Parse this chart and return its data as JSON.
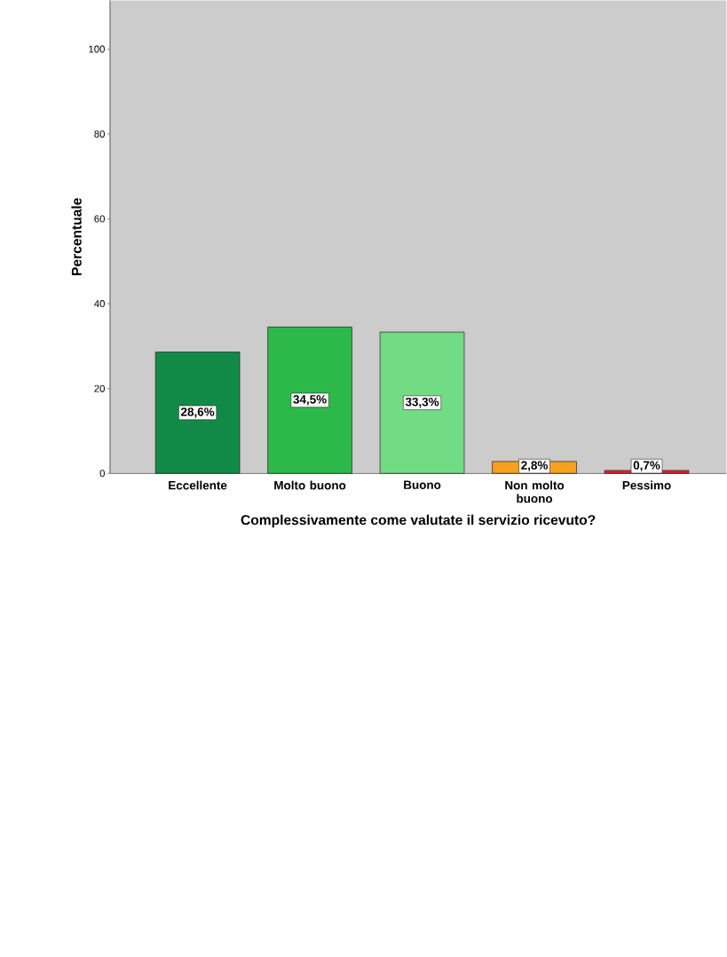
{
  "chart_data": {
    "type": "bar",
    "xlabel": "Complessivamente come valutate il servizio ricevuto?",
    "ylabel": "Percentuale",
    "categories": [
      "Eccellente",
      "Molto buono",
      "Buono",
      "Non molto buono",
      "Pessimo"
    ],
    "values": [
      28.6,
      34.5,
      33.3,
      2.8,
      0.7
    ],
    "colors": [
      "#128a47",
      "#2db84a",
      "#72dc84",
      "#f7a020",
      "#e8202a"
    ],
    "value_labels": [
      "28,6%",
      "34,5%",
      "33,3%",
      "2,8%",
      "0,7%"
    ],
    "ylim": [
      0,
      111.5
    ],
    "yticks": [
      0,
      20,
      40,
      60,
      80,
      100
    ]
  }
}
